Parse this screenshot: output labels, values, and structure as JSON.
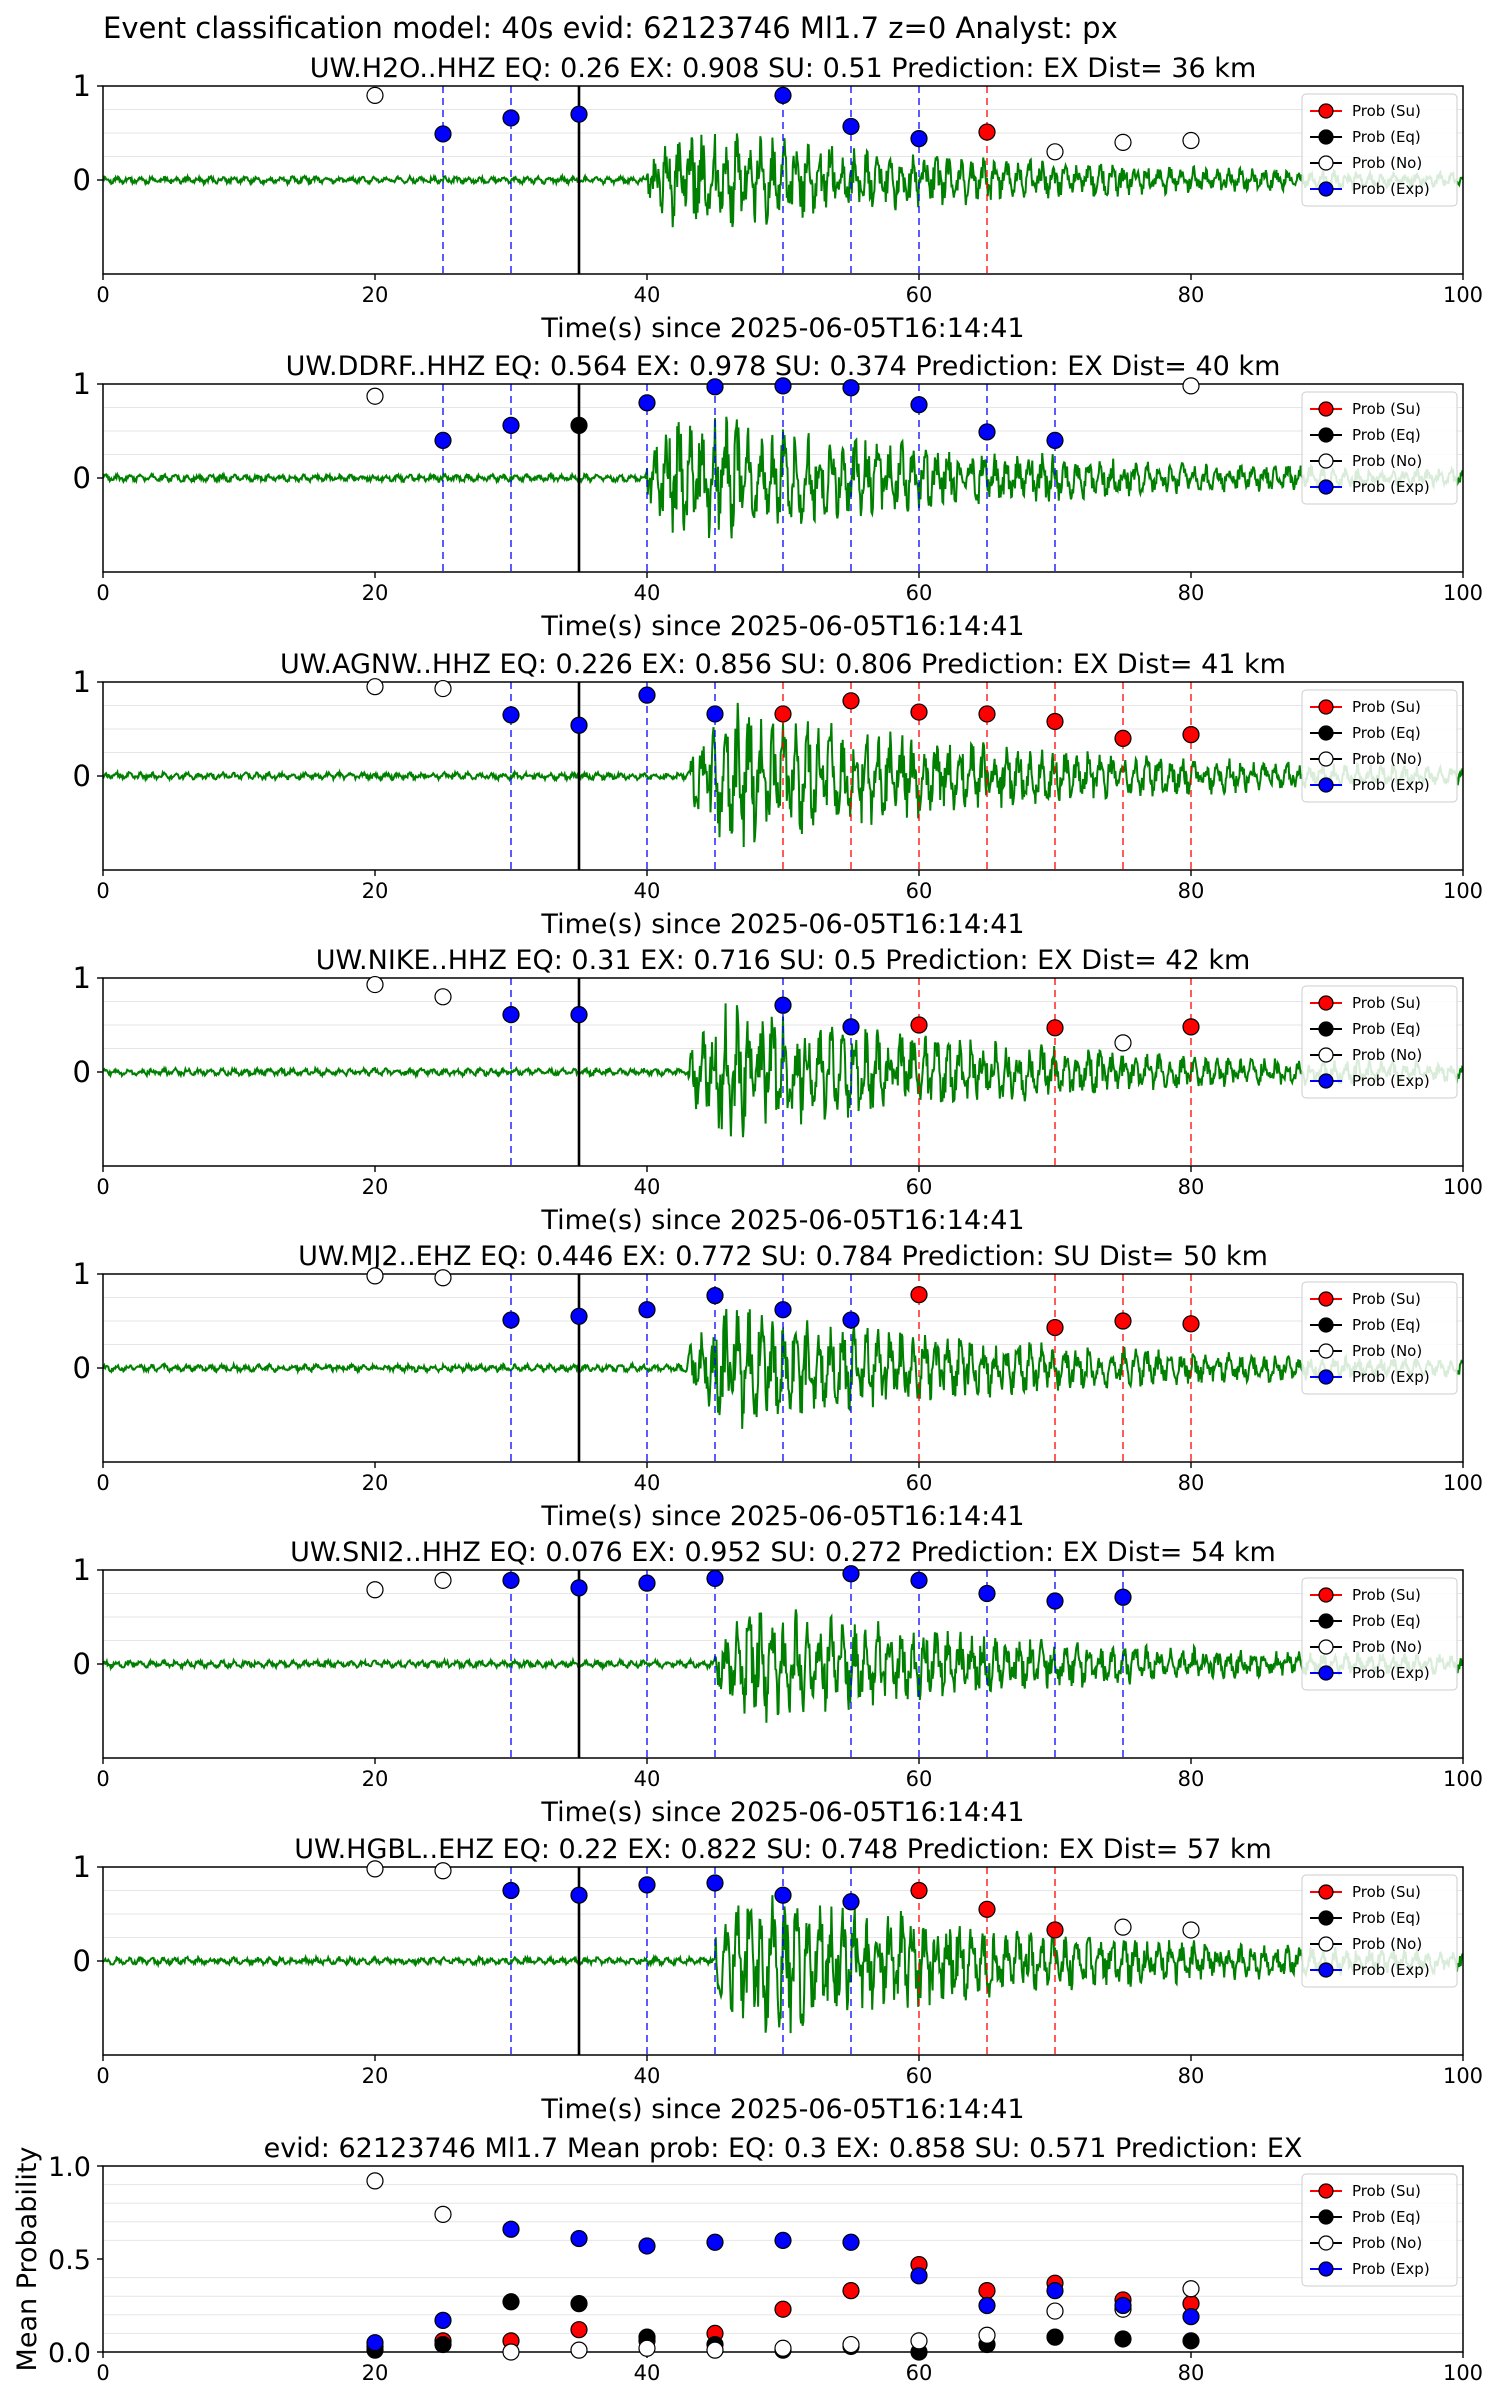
{
  "figure": {
    "suptitle": "Event classification model: 40s evid: 62123746 Ml1.7 z=0 Analyst: px"
  },
  "legend": [
    "Prob (Su)",
    "Prob (Eq)",
    "Prob (No)",
    "Prob (Exp)"
  ],
  "colors": {
    "waveform": "#008000",
    "su": "#ff0000",
    "eq": "#000000",
    "no": "#ffffff",
    "exp": "#0000ff",
    "grid": "#e6e6e6"
  },
  "chart_data": [
    {
      "type": "scatter",
      "station": "UW.H2O..HHZ",
      "title": "UW.H2O..HHZ   EQ: 0.26  EX: 0.908  SU: 0.51   Prediction: EX    Dist= 36 km",
      "xlabel": "Time(s) since 2025-06-05T16:14:41",
      "xlim": [
        0,
        100
      ],
      "xticks": [
        0,
        20,
        40,
        60,
        80,
        100
      ],
      "ylim": [
        -1,
        1
      ],
      "yticks": [
        0,
        1
      ],
      "pick_time": 35,
      "onset": 40,
      "amp": 0.55,
      "seed": 11,
      "series": [
        {
          "name": "Prob (Su)",
          "points": [
            [
              65,
              0.51
            ]
          ]
        },
        {
          "name": "Prob (Eq)",
          "points": []
        },
        {
          "name": "Prob (No)",
          "points": [
            [
              20,
              0.9
            ],
            [
              70,
              0.3
            ],
            [
              75,
              0.4
            ],
            [
              80,
              0.42
            ]
          ]
        },
        {
          "name": "Prob (Exp)",
          "points": [
            [
              25,
              0.49
            ],
            [
              30,
              0.66
            ],
            [
              35,
              0.7
            ],
            [
              50,
              0.9
            ],
            [
              55,
              0.57
            ],
            [
              60,
              0.44
            ]
          ]
        }
      ]
    },
    {
      "type": "scatter",
      "station": "UW.DDRF..HHZ",
      "title": "UW.DDRF..HHZ   EQ: 0.564  EX: 0.978  SU: 0.374   Prediction: EX    Dist= 40 km",
      "xlabel": "Time(s) since 2025-06-05T16:14:41",
      "xlim": [
        0,
        100
      ],
      "xticks": [
        0,
        20,
        40,
        60,
        80,
        100
      ],
      "ylim": [
        -1,
        1
      ],
      "yticks": [
        0,
        1
      ],
      "pick_time": 35,
      "onset": 40,
      "amp": 0.7,
      "seed": 23,
      "series": [
        {
          "name": "Prob (Su)",
          "points": []
        },
        {
          "name": "Prob (Eq)",
          "points": [
            [
              35,
              0.56
            ]
          ]
        },
        {
          "name": "Prob (No)",
          "points": [
            [
              20,
              0.87
            ],
            [
              80,
              0.98
            ]
          ]
        },
        {
          "name": "Prob (Exp)",
          "points": [
            [
              25,
              0.4
            ],
            [
              30,
              0.56
            ],
            [
              40,
              0.8
            ],
            [
              45,
              0.97
            ],
            [
              50,
              0.98
            ],
            [
              55,
              0.96
            ],
            [
              60,
              0.78
            ],
            [
              65,
              0.49
            ],
            [
              70,
              0.4
            ]
          ]
        }
      ]
    },
    {
      "type": "scatter",
      "station": "UW.AGNW..HHZ",
      "title": "UW.AGNW..HHZ   EQ: 0.226  EX: 0.856  SU: 0.806   Prediction: EX    Dist= 41 km",
      "xlabel": "Time(s) since 2025-06-05T16:14:41",
      "xlim": [
        0,
        100
      ],
      "xticks": [
        0,
        20,
        40,
        60,
        80,
        100
      ],
      "ylim": [
        -1,
        1
      ],
      "yticks": [
        0,
        1
      ],
      "pick_time": 35,
      "onset": 43,
      "amp": 0.75,
      "seed": 37,
      "series": [
        {
          "name": "Prob (Su)",
          "points": [
            [
              50,
              0.66
            ],
            [
              55,
              0.8
            ],
            [
              60,
              0.68
            ],
            [
              65,
              0.66
            ],
            [
              70,
              0.58
            ],
            [
              75,
              0.4
            ],
            [
              80,
              0.44
            ]
          ]
        },
        {
          "name": "Prob (Eq)",
          "points": []
        },
        {
          "name": "Prob (No)",
          "points": [
            [
              20,
              0.95
            ],
            [
              25,
              0.93
            ]
          ]
        },
        {
          "name": "Prob (Exp)",
          "points": [
            [
              30,
              0.65
            ],
            [
              35,
              0.54
            ],
            [
              40,
              0.86
            ],
            [
              45,
              0.66
            ]
          ]
        }
      ]
    },
    {
      "type": "scatter",
      "station": "UW.NIKE..HHZ",
      "title": "UW.NIKE..HHZ   EQ: 0.31  EX: 0.716  SU: 0.5   Prediction: EX    Dist= 42 km",
      "xlabel": "Time(s) since 2025-06-05T16:14:41",
      "xlim": [
        0,
        100
      ],
      "xticks": [
        0,
        20,
        40,
        60,
        80,
        100
      ],
      "ylim": [
        -1,
        1
      ],
      "yticks": [
        0,
        1
      ],
      "pick_time": 35,
      "onset": 43,
      "amp": 0.7,
      "seed": 51,
      "series": [
        {
          "name": "Prob (Su)",
          "points": [
            [
              60,
              0.5
            ],
            [
              70,
              0.47
            ],
            [
              80,
              0.48
            ]
          ]
        },
        {
          "name": "Prob (Eq)",
          "points": []
        },
        {
          "name": "Prob (No)",
          "points": [
            [
              20,
              0.93
            ],
            [
              25,
              0.8
            ],
            [
              75,
              0.31
            ]
          ]
        },
        {
          "name": "Prob (Exp)",
          "points": [
            [
              30,
              0.61
            ],
            [
              35,
              0.61
            ],
            [
              50,
              0.71
            ],
            [
              55,
              0.48
            ]
          ]
        }
      ]
    },
    {
      "type": "scatter",
      "station": "UW.MJ2..EHZ",
      "title": "UW.MJ2..EHZ   EQ: 0.446  EX: 0.772  SU: 0.784   Prediction: SU    Dist= 50 km",
      "xlabel": "Time(s) since 2025-06-05T16:14:41",
      "xlim": [
        0,
        100
      ],
      "xticks": [
        0,
        20,
        40,
        60,
        80,
        100
      ],
      "ylim": [
        -1,
        1
      ],
      "yticks": [
        0,
        1
      ],
      "pick_time": 35,
      "onset": 43,
      "amp": 0.65,
      "seed": 67,
      "series": [
        {
          "name": "Prob (Su)",
          "points": [
            [
              60,
              0.78
            ],
            [
              70,
              0.43
            ],
            [
              75,
              0.5
            ],
            [
              80,
              0.47
            ]
          ]
        },
        {
          "name": "Prob (Eq)",
          "points": []
        },
        {
          "name": "Prob (No)",
          "points": [
            [
              20,
              0.98
            ],
            [
              25,
              0.96
            ]
          ]
        },
        {
          "name": "Prob (Exp)",
          "points": [
            [
              30,
              0.51
            ],
            [
              35,
              0.55
            ],
            [
              40,
              0.62
            ],
            [
              45,
              0.77
            ],
            [
              50,
              0.62
            ],
            [
              55,
              0.51
            ]
          ]
        }
      ]
    },
    {
      "type": "scatter",
      "station": "UW.SNI2..HHZ",
      "title": "UW.SNI2..HHZ   EQ: 0.076  EX: 0.952  SU: 0.272   Prediction: EX    Dist= 54 km",
      "xlabel": "Time(s) since 2025-06-05T16:14:41",
      "xlim": [
        0,
        100
      ],
      "xticks": [
        0,
        20,
        40,
        60,
        80,
        100
      ],
      "ylim": [
        -1,
        1
      ],
      "yticks": [
        0,
        1
      ],
      "pick_time": 35,
      "onset": 45,
      "amp": 0.6,
      "seed": 79,
      "series": [
        {
          "name": "Prob (Su)",
          "points": []
        },
        {
          "name": "Prob (Eq)",
          "points": []
        },
        {
          "name": "Prob (No)",
          "points": [
            [
              20,
              0.79
            ],
            [
              25,
              0.89
            ]
          ]
        },
        {
          "name": "Prob (Exp)",
          "points": [
            [
              30,
              0.89
            ],
            [
              35,
              0.81
            ],
            [
              40,
              0.86
            ],
            [
              45,
              0.91
            ],
            [
              55,
              0.96
            ],
            [
              60,
              0.89
            ],
            [
              65,
              0.75
            ],
            [
              70,
              0.67
            ],
            [
              75,
              0.71
            ]
          ]
        }
      ]
    },
    {
      "type": "scatter",
      "station": "UW.HGBL..EHZ",
      "title": "UW.HGBL..EHZ   EQ: 0.22  EX: 0.822  SU: 0.748   Prediction: EX    Dist= 57 km",
      "xlabel": "Time(s) since 2025-06-05T16:14:41",
      "xlim": [
        0,
        100
      ],
      "xticks": [
        0,
        20,
        40,
        60,
        80,
        100
      ],
      "ylim": [
        -1,
        1
      ],
      "yticks": [
        0,
        1
      ],
      "pick_time": 35,
      "onset": 45,
      "amp": 0.8,
      "seed": 97,
      "series": [
        {
          "name": "Prob (Su)",
          "points": [
            [
              60,
              0.75
            ],
            [
              65,
              0.55
            ],
            [
              70,
              0.33
            ]
          ]
        },
        {
          "name": "Prob (Eq)",
          "points": []
        },
        {
          "name": "Prob (No)",
          "points": [
            [
              20,
              0.98
            ],
            [
              25,
              0.96
            ],
            [
              75,
              0.36
            ],
            [
              80,
              0.33
            ]
          ]
        },
        {
          "name": "Prob (Exp)",
          "points": [
            [
              30,
              0.75
            ],
            [
              35,
              0.7
            ],
            [
              40,
              0.81
            ],
            [
              45,
              0.83
            ],
            [
              50,
              0.7
            ],
            [
              55,
              0.63
            ]
          ]
        }
      ]
    },
    {
      "type": "scatter",
      "title": "evid: 62123746  Ml1.7   Mean prob:   EQ: 0.3  EX: 0.858  SU: 0.571   Prediction: EX",
      "ylabel": "Mean Probability",
      "xlim": [
        0,
        100
      ],
      "xticks": [
        0,
        20,
        40,
        60,
        80,
        100
      ],
      "ylim": [
        0,
        1
      ],
      "yticks": [
        0.0,
        0.5,
        1.0
      ],
      "series": [
        {
          "name": "Prob (Su)",
          "points": [
            [
              20,
              0.03
            ],
            [
              25,
              0.06
            ],
            [
              30,
              0.06
            ],
            [
              35,
              0.12
            ],
            [
              40,
              0.06
            ],
            [
              45,
              0.1
            ],
            [
              50,
              0.23
            ],
            [
              55,
              0.33
            ],
            [
              60,
              0.47
            ],
            [
              65,
              0.33
            ],
            [
              70,
              0.37
            ],
            [
              75,
              0.28
            ],
            [
              80,
              0.26
            ]
          ]
        },
        {
          "name": "Prob (Eq)",
          "points": [
            [
              20,
              0.01
            ],
            [
              25,
              0.04
            ],
            [
              30,
              0.27
            ],
            [
              35,
              0.26
            ],
            [
              40,
              0.08
            ],
            [
              45,
              0.04
            ],
            [
              50,
              0.01
            ],
            [
              55,
              0.03
            ],
            [
              60,
              0.0
            ],
            [
              65,
              0.04
            ],
            [
              70,
              0.08
            ],
            [
              75,
              0.07
            ],
            [
              80,
              0.06
            ]
          ]
        },
        {
          "name": "Prob (No)",
          "points": [
            [
              20,
              0.92
            ],
            [
              25,
              0.74
            ],
            [
              30,
              0.0
            ],
            [
              35,
              0.01
            ],
            [
              40,
              0.02
            ],
            [
              45,
              0.01
            ],
            [
              50,
              0.02
            ],
            [
              55,
              0.04
            ],
            [
              60,
              0.06
            ],
            [
              65,
              0.09
            ],
            [
              70,
              0.22
            ],
            [
              75,
              0.23
            ],
            [
              80,
              0.34
            ]
          ]
        },
        {
          "name": "Prob (Exp)",
          "points": [
            [
              20,
              0.05
            ],
            [
              25,
              0.17
            ],
            [
              30,
              0.66
            ],
            [
              35,
              0.61
            ],
            [
              40,
              0.57
            ],
            [
              45,
              0.59
            ],
            [
              50,
              0.6
            ],
            [
              55,
              0.59
            ],
            [
              60,
              0.41
            ],
            [
              65,
              0.25
            ],
            [
              70,
              0.33
            ],
            [
              75,
              0.25
            ],
            [
              80,
              0.19
            ]
          ]
        }
      ]
    }
  ]
}
